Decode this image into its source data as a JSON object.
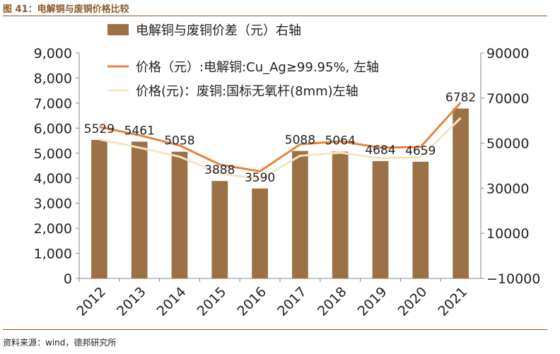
{
  "header": {
    "title": "图 41：电解铜与废铜价格比较"
  },
  "footer": {
    "source": "资料来源：wind，德邦研究所"
  },
  "colors": {
    "bar": "#9c7146",
    "line1": "#e8833f",
    "line2": "#f4e4c4",
    "accent": "#8b5a2b"
  },
  "chart_data": {
    "type": "bar",
    "categories": [
      "2012",
      "2013",
      "2014",
      "2015",
      "2016",
      "2017",
      "2018",
      "2019",
      "2020",
      "2021"
    ],
    "legend_position": "top-center",
    "grid": false,
    "series": [
      {
        "name": "电解铜与废铜价差（元）右轴",
        "type": "bar",
        "axis": "left",
        "values": [
          5529,
          5461,
          5058,
          3888,
          3590,
          5088,
          5064,
          4684,
          4659,
          6782
        ],
        "labels": [
          "5529",
          "5461",
          "5058",
          "3888",
          "3590",
          "5088",
          "5064",
          "4684",
          "4659",
          "6782"
        ]
      },
      {
        "name": "价格（元）:电解铜:Cu_Ag≥99.95%, 左轴",
        "type": "line",
        "axis": "right",
        "values": [
          57200,
          53500,
          49000,
          40500,
          37500,
          49500,
          50800,
          48000,
          48300,
          68000
        ]
      },
      {
        "name": "价格(元)：废铜:国标无氧杆(8mm)左轴",
        "type": "line",
        "axis": "right",
        "values": [
          51700,
          48000,
          44000,
          36600,
          34000,
          44400,
          45800,
          43300,
          43700,
          61200
        ]
      }
    ],
    "y_left": {
      "ticks": [
        "9,000",
        "8,000",
        "7,000",
        "6,000",
        "5,000",
        "4,000",
        "3,000",
        "2,000",
        "1,000",
        "0"
      ],
      "range": [
        0,
        9000
      ]
    },
    "y_right": {
      "ticks": [
        "90000",
        "70000",
        "50000",
        "30000",
        "10000",
        "−10000"
      ],
      "range": [
        -10000,
        90000
      ]
    }
  }
}
